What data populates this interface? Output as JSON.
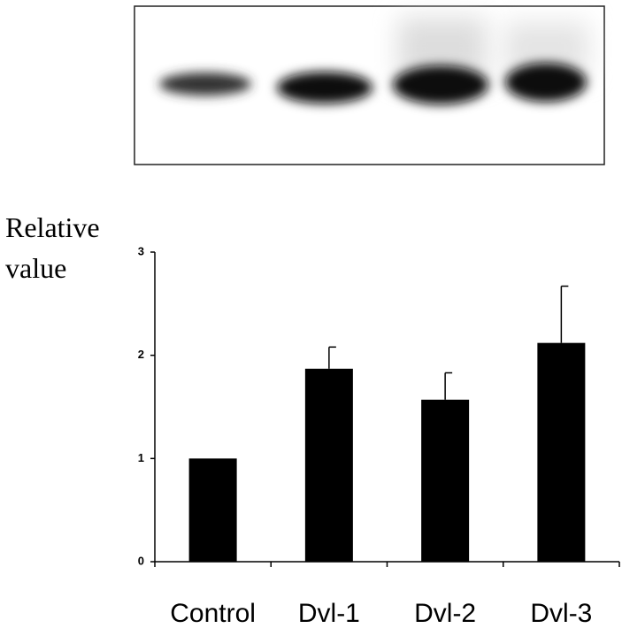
{
  "chart_data": {
    "type": "bar",
    "y_label": "Relative value",
    "categories": [
      "Control",
      "Dvl-1",
      "Dvl-2",
      "Dvl-3"
    ],
    "values": [
      1.0,
      1.87,
      1.57,
      2.12
    ],
    "errors": [
      0,
      0.21,
      0.26,
      0.55
    ],
    "color": "#000000",
    "ylim": [
      0,
      3
    ],
    "yticks": [
      0,
      1,
      2,
      3
    ],
    "grid": false
  }
}
